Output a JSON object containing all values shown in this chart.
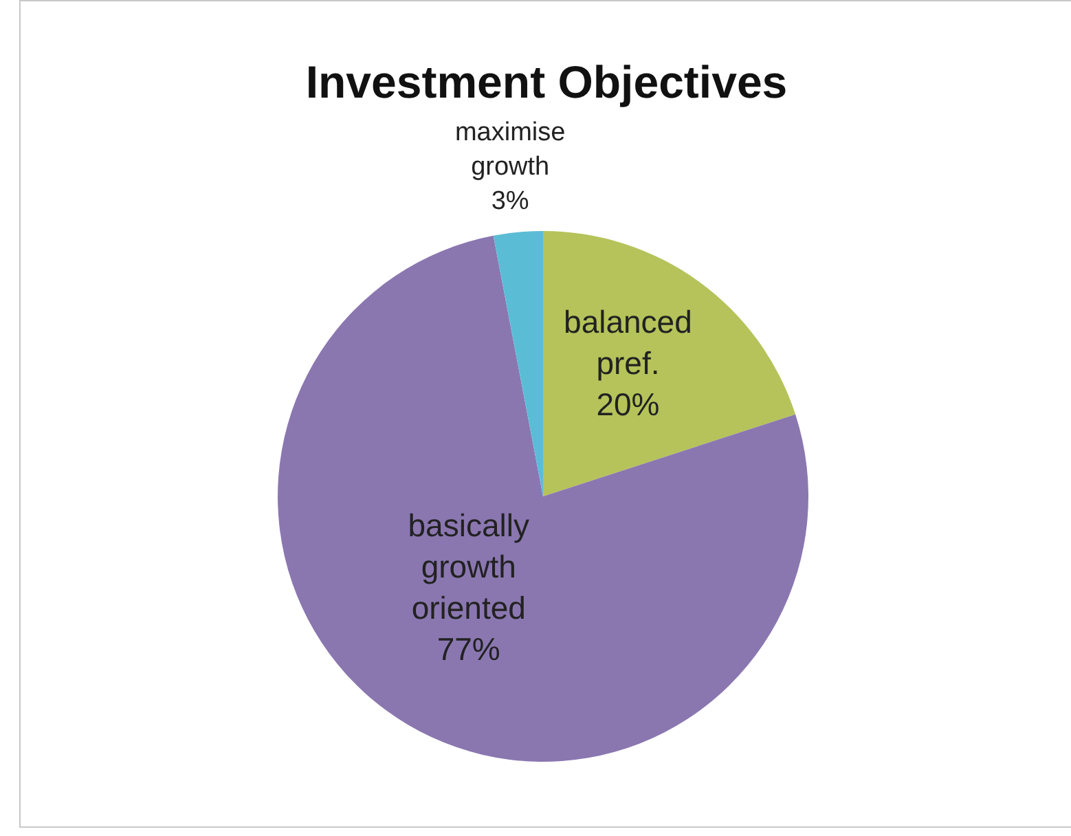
{
  "chart_data": {
    "type": "pie",
    "title": "Investment Objectives",
    "categories": [
      "balanced pref.",
      "basically growth oriented",
      "maximise growth"
    ],
    "values": [
      20,
      77,
      3
    ],
    "value_labels": [
      "20%",
      "77%",
      "3%"
    ],
    "colors": [
      "#b5c35a",
      "#8a77b0",
      "#5bbdd5"
    ],
    "legend": false
  }
}
